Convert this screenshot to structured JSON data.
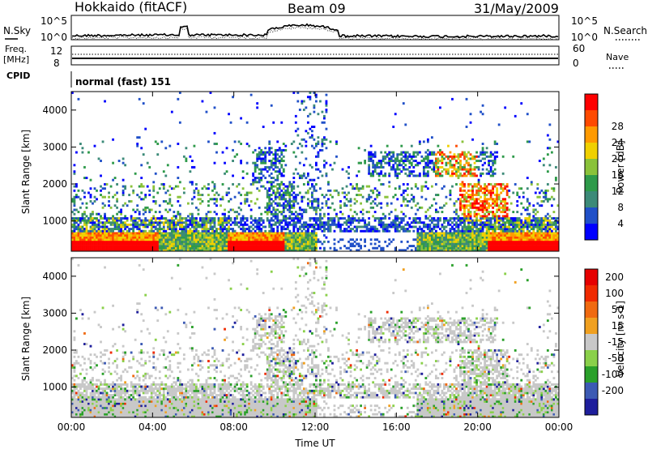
{
  "header": {
    "station": "Hokkaido (fitACF)",
    "beam": "Beam 09",
    "date": "31/May/2009"
  },
  "top_panels": {
    "nsky_label": "N.Sky",
    "nsearch_label": "N.Search",
    "nsky_ticks": [
      "10^5",
      "10^0"
    ],
    "nsearch_ticks": [
      "10^5",
      "10^0"
    ],
    "freq_label": "Freq.",
    "freq_unit": "[MHz]",
    "freq_ticks": [
      "12",
      "8"
    ],
    "nave_label": "Nave",
    "nave_ticks": [
      "60",
      "0"
    ],
    "cpid_label": "CPID",
    "cpid_text": "normal (fast) 151"
  },
  "colors": {
    "power": [
      "#0000ff",
      "#2050c8",
      "#3c8a78",
      "#2e9a4a",
      "#8ac23a",
      "#f0d000",
      "#ff9a00",
      "#ff4a00",
      "#ff0000"
    ],
    "velocity": [
      "#1e1e9c",
      "#3c5ab4",
      "#2aa02a",
      "#8ad04a",
      "#c8c8c8",
      "#f0a020",
      "#f06a10",
      "#f02a00",
      "#e60000"
    ]
  },
  "chart_data": [
    {
      "type": "heatmap",
      "title": "",
      "xlabel": "",
      "ylabel": "Slant Range [km]",
      "x_ticks": [
        "00:00",
        "04:00",
        "08:00",
        "12:00",
        "16:00",
        "20:00",
        "00:00"
      ],
      "y_ticks": [
        "1000",
        "2000",
        "3000",
        "4000"
      ],
      "ylim": [
        180,
        4500
      ],
      "colorbar_label": "Power [dB]",
      "colorbar_ticks": [
        "4",
        "8",
        "12",
        "16",
        "20",
        "24",
        "28"
      ]
    },
    {
      "type": "heatmap",
      "title": "",
      "xlabel": "Time UT",
      "ylabel": "Slant Range [km]",
      "x_ticks": [
        "00:00",
        "04:00",
        "08:00",
        "12:00",
        "16:00",
        "20:00",
        "00:00"
      ],
      "y_ticks": [
        "1000",
        "2000",
        "3000",
        "4000"
      ],
      "ylim": [
        180,
        4500
      ],
      "colorbar_label": "Velocity [m s-1]",
      "colorbar_ticks": [
        "200",
        "100",
        "50",
        "15",
        "-15",
        "-50",
        "-100",
        "-200"
      ]
    }
  ]
}
